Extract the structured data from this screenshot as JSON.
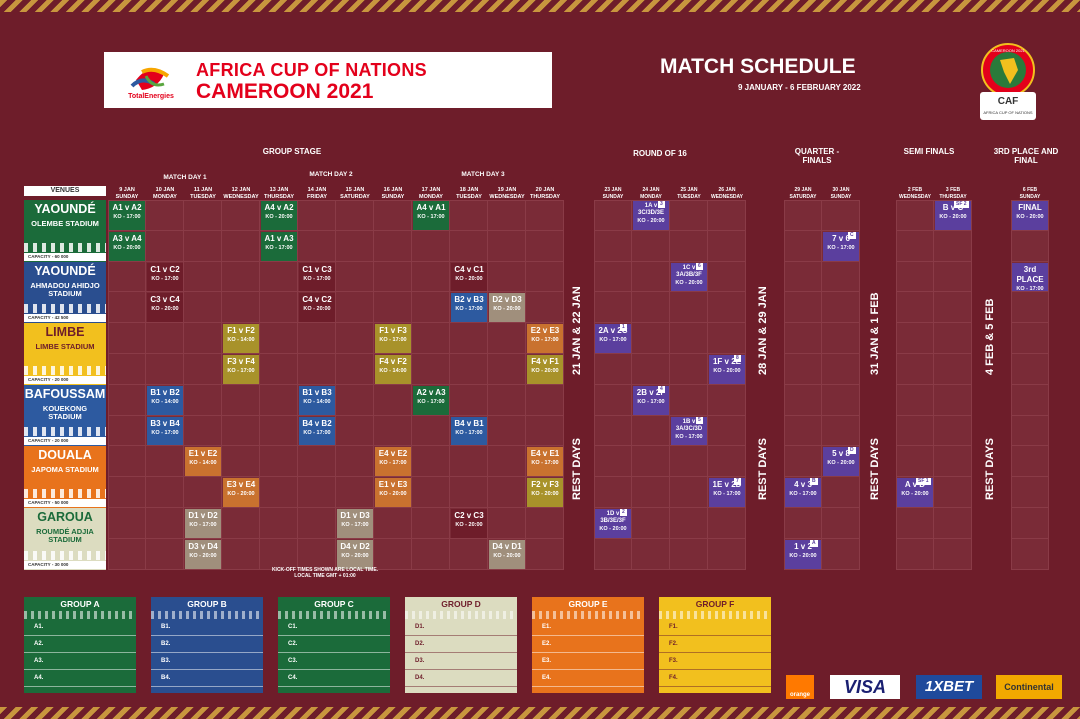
{
  "header": {
    "brand": "TotalEnergies",
    "title_line1": "AFRICA CUP OF NATIONS",
    "title_line2": "CAMEROON 2021",
    "schedule_title": "MATCH SCHEDULE",
    "schedule_dates": "9 JANUARY - 6 FEBRUARY 2022",
    "caf_badge": {
      "top": "CAMEROON 2021",
      "org": "CAF",
      "sub": "AFRICA CUP OF NATIONS"
    }
  },
  "sections": {
    "group_stage": "GROUP STAGE",
    "round_of_16": "ROUND OF 16",
    "quarter_finals": "QUARTER - FINALS",
    "semi_finals": "SEMI FINALS",
    "third_final": "3RD PLACE AND FINAL",
    "match_day_1": "MATCH DAY 1",
    "match_day_2": "MATCH DAY 2",
    "match_day_3": "MATCH DAY 3",
    "venues_label": "VENUES"
  },
  "dates_group": [
    {
      "d": "9 JAN",
      "w": "SUNDAY"
    },
    {
      "d": "10 JAN",
      "w": "MONDAY"
    },
    {
      "d": "11 JAN",
      "w": "TUESDAY"
    },
    {
      "d": "12 JAN",
      "w": "WEDNESDAY"
    },
    {
      "d": "13 JAN",
      "w": "THURSDAY"
    },
    {
      "d": "14 JAN",
      "w": "FRIDAY"
    },
    {
      "d": "15 JAN",
      "w": "SATURDAY"
    },
    {
      "d": "16 JAN",
      "w": "SUNDAY"
    },
    {
      "d": "17 JAN",
      "w": "MONDAY"
    },
    {
      "d": "18 JAN",
      "w": "TUESDAY"
    },
    {
      "d": "19 JAN",
      "w": "WEDNESDAY"
    },
    {
      "d": "20 JAN",
      "w": "THURSDAY"
    }
  ],
  "dates_r16": [
    {
      "d": "23 JAN",
      "w": "SUNDAY"
    },
    {
      "d": "24 JAN",
      "w": "MONDAY"
    },
    {
      "d": "25 JAN",
      "w": "TUESDAY"
    },
    {
      "d": "26 JAN",
      "w": "WEDNESDAY"
    }
  ],
  "dates_qf": [
    {
      "d": "29 JAN",
      "w": "SATURDAY"
    },
    {
      "d": "30 JAN",
      "w": "SUNDAY"
    }
  ],
  "dates_sf": [
    {
      "d": "2 FEB",
      "w": "WEDNESDAY"
    },
    {
      "d": "3 FEB",
      "w": "THURSDAY"
    }
  ],
  "dates_final": [
    {
      "d": "6 FEB",
      "w": "SUNDAY"
    }
  ],
  "venues": [
    {
      "city": "YAOUNDÉ",
      "stadium": "OLEMBE STADIUM",
      "capacity": "CAPACITY - 60 000",
      "color": "#1b6b3a"
    },
    {
      "city": "YAOUNDÉ",
      "stadium": "AHMADOU AHIDJO STADIUM",
      "capacity": "CAPACITY - 42 500",
      "color": "#2a4e8f"
    },
    {
      "city": "LIMBE",
      "stadium": "LIMBE STADIUM",
      "capacity": "CAPACITY - 20 000",
      "color": "#f2c01e"
    },
    {
      "city": "BAFOUSSAM",
      "stadium": "KOUEKONG STADIUM",
      "capacity": "CAPACITY - 20 000",
      "color": "#2d5aa0"
    },
    {
      "city": "DOUALA",
      "stadium": "JAPOMA STADIUM",
      "capacity": "CAPACITY - 50 000",
      "color": "#e8731c"
    },
    {
      "city": "GAROUA",
      "stadium": "ROUMDÉ ADJIA STADIUM",
      "capacity": "CAPACITY - 30 000",
      "color": "#dcdcc0"
    }
  ],
  "matches": [
    {
      "t": "A1 v A2",
      "ko": "KO - 17:00",
      "c": 0,
      "r": 0,
      "col": "#1b6b3a"
    },
    {
      "t": "A3 v A4",
      "ko": "KO - 20:00",
      "c": 0,
      "r": 1,
      "col": "#1b6b3a"
    },
    {
      "t": "A4 v A2",
      "ko": "KO - 20:00",
      "c": 4,
      "r": 0,
      "col": "#1b6b3a"
    },
    {
      "t": "A1 v A3",
      "ko": "KO - 17:00",
      "c": 4,
      "r": 1,
      "col": "#1b6b3a"
    },
    {
      "t": "A4 v A1",
      "ko": "KO - 17:00",
      "c": 8,
      "r": 0,
      "col": "#1b6b3a"
    },
    {
      "t": "C1 v C2",
      "ko": "KO - 17:00",
      "c": 1,
      "r": 2,
      "col": "#6e1d2a"
    },
    {
      "t": "C3 v C4",
      "ko": "KO - 20:00",
      "c": 1,
      "r": 3,
      "col": "#6e1d2a"
    },
    {
      "t": "C1 v C3",
      "ko": "KO - 17:00",
      "c": 5,
      "r": 2,
      "col": "#6e1d2a"
    },
    {
      "t": "C4 v C2",
      "ko": "KO - 20:00",
      "c": 5,
      "r": 3,
      "col": "#6e1d2a"
    },
    {
      "t": "C4 v C1",
      "ko": "KO - 20:00",
      "c": 9,
      "r": 2,
      "col": "#6e1d2a"
    },
    {
      "t": "B2 v B3",
      "ko": "KO - 17:00",
      "c": 9,
      "r": 3,
      "col": "#2d5aa0"
    },
    {
      "t": "D2 v D3",
      "ko": "KO - 20:00",
      "c": 10,
      "r": 3,
      "col": "#a08f7c"
    },
    {
      "t": "F1 v F2",
      "ko": "KO - 14:00",
      "c": 3,
      "r": 4,
      "col": "#a8922a"
    },
    {
      "t": "F3 v F4",
      "ko": "KO - 17:00",
      "c": 3,
      "r": 5,
      "col": "#a8922a"
    },
    {
      "t": "F1 v F3",
      "ko": "KO - 17:00",
      "c": 7,
      "r": 4,
      "col": "#a8922a"
    },
    {
      "t": "F4 v F2",
      "ko": "KO - 14:00",
      "c": 7,
      "r": 5,
      "col": "#a8922a"
    },
    {
      "t": "E2 v E3",
      "ko": "KO - 17:00",
      "c": 11,
      "r": 4,
      "col": "#c9722f"
    },
    {
      "t": "F4 v F1",
      "ko": "KO - 20:00",
      "c": 11,
      "r": 5,
      "col": "#a8922a"
    },
    {
      "t": "B1 v B2",
      "ko": "KO - 14:00",
      "c": 1,
      "r": 6,
      "col": "#2d5aa0"
    },
    {
      "t": "B3 v B4",
      "ko": "KO - 17:00",
      "c": 1,
      "r": 7,
      "col": "#2d5aa0"
    },
    {
      "t": "B1 v B3",
      "ko": "KO - 14:00",
      "c": 5,
      "r": 6,
      "col": "#2d5aa0"
    },
    {
      "t": "B4 v B2",
      "ko": "KO - 17:00",
      "c": 5,
      "r": 7,
      "col": "#2d5aa0"
    },
    {
      "t": "A2 v A3",
      "ko": "KO - 17:00",
      "c": 8,
      "r": 6,
      "col": "#1b6b3a"
    },
    {
      "t": "B4 v B1",
      "ko": "KO - 17:00",
      "c": 9,
      "r": 7,
      "col": "#2d5aa0"
    },
    {
      "t": "E1 v E2",
      "ko": "KO - 14:00",
      "c": 2,
      "r": 8,
      "col": "#c9722f"
    },
    {
      "t": "E3 v E4",
      "ko": "KO - 20:00",
      "c": 3,
      "r": 9,
      "col": "#c9722f"
    },
    {
      "t": "E4 v E2",
      "ko": "KO - 17:00",
      "c": 7,
      "r": 8,
      "col": "#c9722f"
    },
    {
      "t": "E1 v E3",
      "ko": "KO - 20:00",
      "c": 7,
      "r": 9,
      "col": "#c9722f"
    },
    {
      "t": "E4 v E1",
      "ko": "KO - 17:00",
      "c": 11,
      "r": 8,
      "col": "#c9722f"
    },
    {
      "t": "F2 v F3",
      "ko": "KO - 20:00",
      "c": 11,
      "r": 9,
      "col": "#a8922a"
    },
    {
      "t": "D1 v D2",
      "ko": "KO - 17:00",
      "c": 2,
      "r": 10,
      "col": "#a08f7c"
    },
    {
      "t": "D3 v D4",
      "ko": "KO - 20:00",
      "c": 2,
      "r": 11,
      "col": "#a08f7c"
    },
    {
      "t": "D1 v D3",
      "ko": "KO - 17:00",
      "c": 6,
      "r": 10,
      "col": "#a08f7c"
    },
    {
      "t": "D4 v D2",
      "ko": "KO - 20:00",
      "c": 6,
      "r": 11,
      "col": "#a08f7c"
    },
    {
      "t": "C2 v C3",
      "ko": "KO - 20:00",
      "c": 9,
      "r": 10,
      "col": "#6e1d2a"
    },
    {
      "t": "D4 v D1",
      "ko": "KO - 20:00",
      "c": 10,
      "r": 11,
      "col": "#a08f7c"
    }
  ],
  "knockout": [
    {
      "t": "1A v 3C/3D/3E",
      "ko": "KO - 20:00",
      "n": "3",
      "g": "r16",
      "c": 1,
      "r": 0
    },
    {
      "t": "1C v 3A/3B/3F",
      "ko": "KO - 20:00",
      "n": "6",
      "g": "r16",
      "c": 2,
      "r": 2
    },
    {
      "t": "2A v 2C",
      "ko": "KO - 17:00",
      "n": "1",
      "g": "r16",
      "c": 0,
      "r": 4
    },
    {
      "t": "1F v 2E",
      "ko": "KO - 20:00",
      "n": "8",
      "g": "r16",
      "c": 3,
      "r": 5
    },
    {
      "t": "2B v 2F",
      "ko": "KO - 17:00",
      "n": "4",
      "g": "r16",
      "c": 1,
      "r": 6
    },
    {
      "t": "1B v 3A/3C/3D",
      "ko": "KO - 17:00",
      "n": "5",
      "g": "r16",
      "c": 2,
      "r": 7
    },
    {
      "t": "1E v 2D",
      "ko": "KO - 17:00",
      "n": "7",
      "g": "r16",
      "c": 3,
      "r": 9
    },
    {
      "t": "1D v 3B/3E/3F",
      "ko": "KO - 20:00",
      "n": "2",
      "g": "r16",
      "c": 0,
      "r": 10
    },
    {
      "t": "7 v 6",
      "ko": "KO - 17:00",
      "n": "C",
      "g": "qf",
      "c": 1,
      "r": 1
    },
    {
      "t": "5 v 8",
      "ko": "KO - 20:00",
      "n": "D",
      "g": "qf",
      "c": 1,
      "r": 8
    },
    {
      "t": "4 v 3",
      "ko": "KO - 17:00",
      "n": "B",
      "g": "qf",
      "c": 0,
      "r": 9
    },
    {
      "t": "1 v 2",
      "ko": "KO - 20:00",
      "n": "A",
      "g": "qf",
      "c": 0,
      "r": 11
    },
    {
      "t": "B v C",
      "ko": "KO - 20:00",
      "n": "SF 2",
      "g": "sf",
      "c": 1,
      "r": 0
    },
    {
      "t": "A v D",
      "ko": "KO - 20:00",
      "n": "SF 1",
      "g": "sf",
      "c": 0,
      "r": 9
    },
    {
      "t": "FINAL",
      "ko": "KO - 20:00",
      "n": "",
      "g": "fin",
      "c": 0,
      "r": 0
    },
    {
      "t": "3rd PLACE",
      "ko": "KO - 17:00",
      "n": "",
      "g": "fin",
      "c": 0,
      "r": 2
    }
  ],
  "vertical_labels": {
    "jan21_22": "21 JAN & 22 JAN",
    "jan28_29": "28 JAN & 29 JAN",
    "jan31_feb1": "31 JAN & 1 FEB",
    "feb4_5": "4 FEB & 5 FEB",
    "rest_days": "REST DAYS"
  },
  "footnote_line1": "KICK-OFF TIMES SHOWN ARE LOCAL TIME.",
  "footnote_line2": "LOCAL TIME GMT + 01:00",
  "groups": [
    {
      "name": "GROUP A",
      "color": "#1b6b3a",
      "slots": [
        "A1.",
        "A2.",
        "A3.",
        "A4."
      ]
    },
    {
      "name": "GROUP B",
      "color": "#2a4e8f",
      "slots": [
        "B1.",
        "B2.",
        "B3.",
        "B4."
      ]
    },
    {
      "name": "GROUP C",
      "color": "#1b6b3a",
      "slots": [
        "C1.",
        "C2.",
        "C3.",
        "C4."
      ]
    },
    {
      "name": "GROUP D",
      "color": "#dcdcc0",
      "slots": [
        "D1.",
        "D2.",
        "D3.",
        "D4."
      ]
    },
    {
      "name": "GROUP E",
      "color": "#e8731c",
      "slots": [
        "E1.",
        "E2.",
        "E3.",
        "E4."
      ]
    },
    {
      "name": "GROUP F",
      "color": "#f2c01e",
      "slots": [
        "F1.",
        "F2.",
        "F3.",
        "F4."
      ]
    }
  ],
  "sponsors": {
    "orange": "orange",
    "visa": "VISA",
    "onexbet": "1XBET",
    "continental": "Continental"
  }
}
